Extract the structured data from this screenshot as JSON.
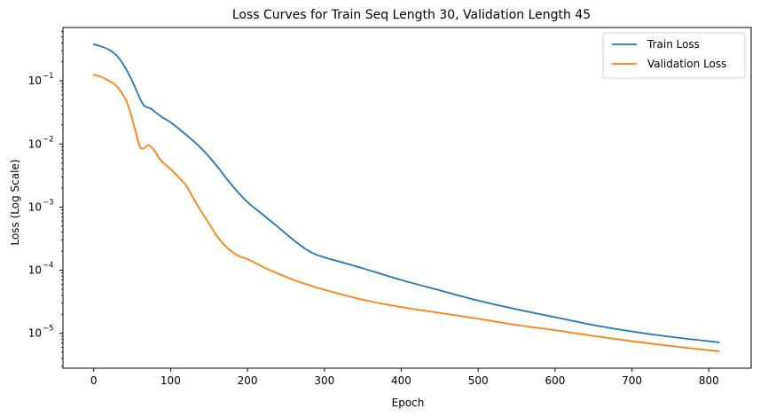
{
  "chart_data": {
    "type": "line",
    "title": "Loss Curves for Train Seq Length 30, Validation Length 45",
    "xlabel": "Epoch",
    "ylabel": "Loss (Log Scale)",
    "xlim": [
      -40,
      855
    ],
    "ylim": [
      2.8e-06,
      0.7
    ],
    "yscale": "log",
    "grid": false,
    "legend_position": "top-right",
    "x_ticks": [
      0,
      100,
      200,
      300,
      400,
      500,
      600,
      700,
      800
    ],
    "x_tick_labels": [
      "0",
      "100",
      "200",
      "300",
      "400",
      "500",
      "600",
      "700",
      "800"
    ],
    "y_ticks": [
      1e-05,
      0.0001,
      0.001,
      0.01,
      0.1
    ],
    "y_tick_labels": [
      {
        "base": "10",
        "exp": "−5"
      },
      {
        "base": "10",
        "exp": "−4"
      },
      {
        "base": "10",
        "exp": "−3"
      },
      {
        "base": "10",
        "exp": "−2"
      },
      {
        "base": "10",
        "exp": "−1"
      }
    ],
    "series": [
      {
        "name": "Train Loss",
        "color": "#1f77b4",
        "x": [
          0,
          10,
          20,
          30,
          40,
          50,
          60,
          65,
          70,
          75,
          80,
          90,
          100,
          120,
          140,
          160,
          180,
          200,
          220,
          240,
          260,
          280,
          300,
          350,
          400,
          450,
          500,
          550,
          600,
          650,
          700,
          750,
          800,
          813
        ],
        "y": [
          0.38,
          0.35,
          0.31,
          0.25,
          0.17,
          0.1,
          0.053,
          0.041,
          0.038,
          0.036,
          0.032,
          0.026,
          0.022,
          0.014,
          0.0085,
          0.0045,
          0.0022,
          0.0012,
          0.00076,
          0.00048,
          0.0003,
          0.0002,
          0.00016,
          0.000107,
          7e-05,
          4.8e-05,
          3.3e-05,
          2.4e-05,
          1.8e-05,
          1.35e-05,
          1.07e-05,
          8.8e-06,
          7.5e-06,
          7.2e-06
        ]
      },
      {
        "name": "Validation Loss",
        "color": "#ff7f0e",
        "x": [
          0,
          10,
          20,
          30,
          40,
          45,
          50,
          55,
          60,
          65,
          70,
          75,
          80,
          85,
          90,
          100,
          110,
          120,
          130,
          140,
          150,
          160,
          170,
          180,
          190,
          200,
          220,
          240,
          260,
          280,
          300,
          350,
          400,
          450,
          500,
          550,
          600,
          650,
          700,
          750,
          800,
          813
        ],
        "y": [
          0.125,
          0.115,
          0.1,
          0.082,
          0.055,
          0.04,
          0.025,
          0.015,
          0.009,
          0.0085,
          0.0095,
          0.009,
          0.0075,
          0.006,
          0.0051,
          0.004,
          0.003,
          0.0022,
          0.00135,
          0.00085,
          0.00055,
          0.00035,
          0.00025,
          0.000195,
          0.000165,
          0.00015,
          0.000113,
          8.8e-05,
          7e-05,
          5.8e-05,
          4.9e-05,
          3.4e-05,
          2.6e-05,
          2.1e-05,
          1.7e-05,
          1.35e-05,
          1.12e-05,
          9.1e-06,
          7.5e-06,
          6.3e-06,
          5.4e-06,
          5.2e-06
        ]
      }
    ]
  }
}
